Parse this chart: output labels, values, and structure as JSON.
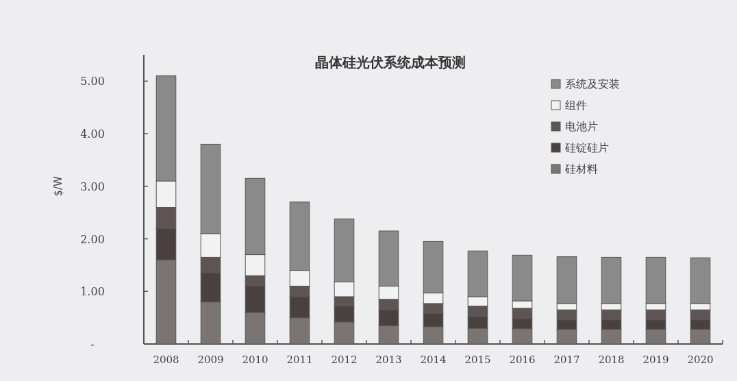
{
  "chart_data": {
    "type": "bar",
    "stacked": true,
    "title": "晶体硅光伏系统成本预测",
    "ylabel": "$/W",
    "categories": [
      "2008",
      "2009",
      "2010",
      "2011",
      "2012",
      "2013",
      "2014",
      "2015",
      "2016",
      "2017",
      "2018",
      "2019",
      "2020"
    ],
    "ylim": [
      0,
      5.5
    ],
    "yticks": [
      {
        "value": 0,
        "label": "-"
      },
      {
        "value": 1,
        "label": "1.00"
      },
      {
        "value": 2,
        "label": "2.00"
      },
      {
        "value": 3,
        "label": "3.00"
      },
      {
        "value": 4,
        "label": "4.00"
      },
      {
        "value": 5,
        "label": "5.00"
      }
    ],
    "legend": "top right",
    "grid": false,
    "series": [
      {
        "name": "硅材料",
        "color": "#7a7472",
        "values": [
          1.6,
          0.8,
          0.6,
          0.5,
          0.42,
          0.35,
          0.33,
          0.3,
          0.29,
          0.28,
          0.28,
          0.28,
          0.28
        ]
      },
      {
        "name": "硅锭硅片",
        "color": "#4a4040",
        "values": [
          0.6,
          0.55,
          0.5,
          0.4,
          0.3,
          0.3,
          0.25,
          0.22,
          0.19,
          0.18,
          0.18,
          0.18,
          0.18
        ]
      },
      {
        "name": "电池片",
        "color": "#5e5454",
        "values": [
          0.4,
          0.3,
          0.2,
          0.2,
          0.18,
          0.2,
          0.19,
          0.2,
          0.2,
          0.19,
          0.19,
          0.19,
          0.19
        ]
      },
      {
        "name": "组件",
        "color": "#f2f2f2",
        "values": [
          0.5,
          0.45,
          0.4,
          0.3,
          0.28,
          0.25,
          0.2,
          0.18,
          0.14,
          0.12,
          0.12,
          0.12,
          0.12
        ]
      },
      {
        "name": "系统及安装",
        "color": "#8a8a8a",
        "values": [
          2.0,
          1.7,
          1.45,
          1.3,
          1.2,
          1.05,
          0.98,
          0.87,
          0.87,
          0.89,
          0.88,
          0.88,
          0.87
        ]
      }
    ]
  }
}
